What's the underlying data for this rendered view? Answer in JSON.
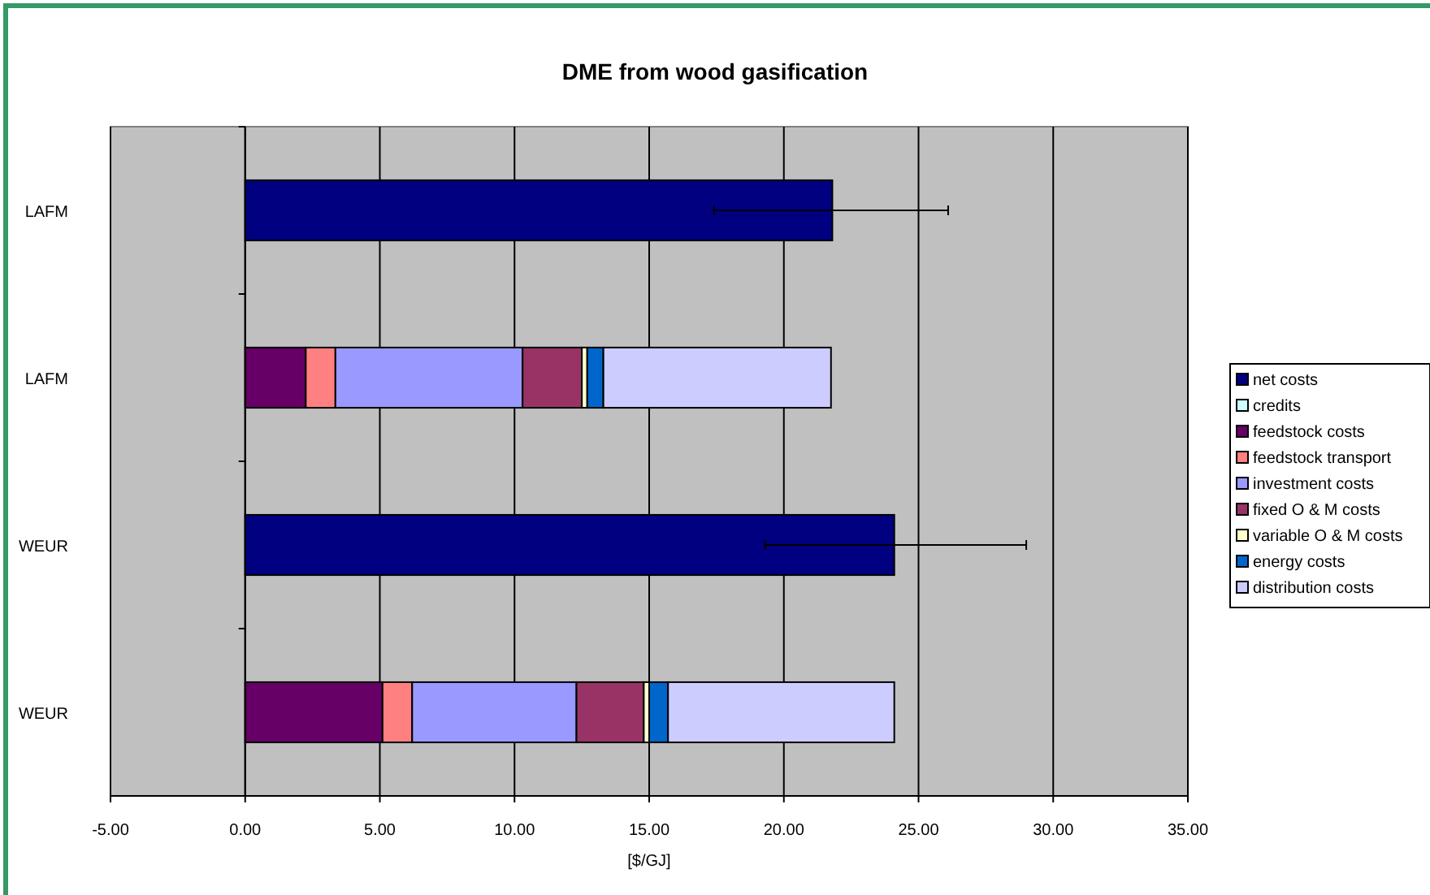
{
  "chart_data": {
    "type": "bar",
    "orientation": "horizontal",
    "stacked": true,
    "title": "DME from wood gasification",
    "xlabel": "[$/GJ]",
    "categories": [
      "LAFM",
      "LAFM",
      "WEUR",
      "WEUR"
    ],
    "series": [
      {
        "name": "net costs",
        "color": "#000080",
        "values": [
          21.8,
          null,
          24.1,
          null
        ],
        "errors": [
          [
            17.4,
            26.1
          ],
          null,
          [
            19.3,
            29.0
          ],
          null
        ]
      },
      {
        "name": "credits",
        "color": "#ccffff",
        "values": [
          null,
          0,
          null,
          0
        ]
      },
      {
        "name": "feedstock costs",
        "color": "#660066",
        "values": [
          null,
          2.25,
          null,
          5.1
        ]
      },
      {
        "name": "feedstock transport",
        "color": "#ff8080",
        "values": [
          null,
          1.1,
          null,
          1.1
        ]
      },
      {
        "name": "investment costs",
        "color": "#9999ff",
        "values": [
          null,
          6.95,
          null,
          6.1
        ]
      },
      {
        "name": "fixed O & M costs",
        "color": "#993366",
        "values": [
          null,
          2.2,
          null,
          2.5
        ]
      },
      {
        "name": "variable O & M costs",
        "color": "#ffffcc",
        "values": [
          null,
          0.2,
          null,
          0.2
        ]
      },
      {
        "name": "energy costs",
        "color": "#0066cc",
        "values": [
          null,
          0.6,
          null,
          0.7
        ]
      },
      {
        "name": "distribution costs",
        "color": "#ccccff",
        "values": [
          null,
          8.45,
          null,
          8.4
        ]
      }
    ],
    "xlim": [
      -5,
      35
    ],
    "xticks": [
      {
        "value": -5,
        "label": "-5.00"
      },
      {
        "value": 0,
        "label": "0.00"
      },
      {
        "value": 5,
        "label": "5.00"
      },
      {
        "value": 10,
        "label": "10.00"
      },
      {
        "value": 15,
        "label": "15.00"
      },
      {
        "value": 20,
        "label": "20.00"
      },
      {
        "value": 25,
        "label": "25.00"
      },
      {
        "value": 30,
        "label": "30.00"
      },
      {
        "value": 35,
        "label": "35.00"
      }
    ],
    "grid": "x",
    "legend": "right"
  }
}
